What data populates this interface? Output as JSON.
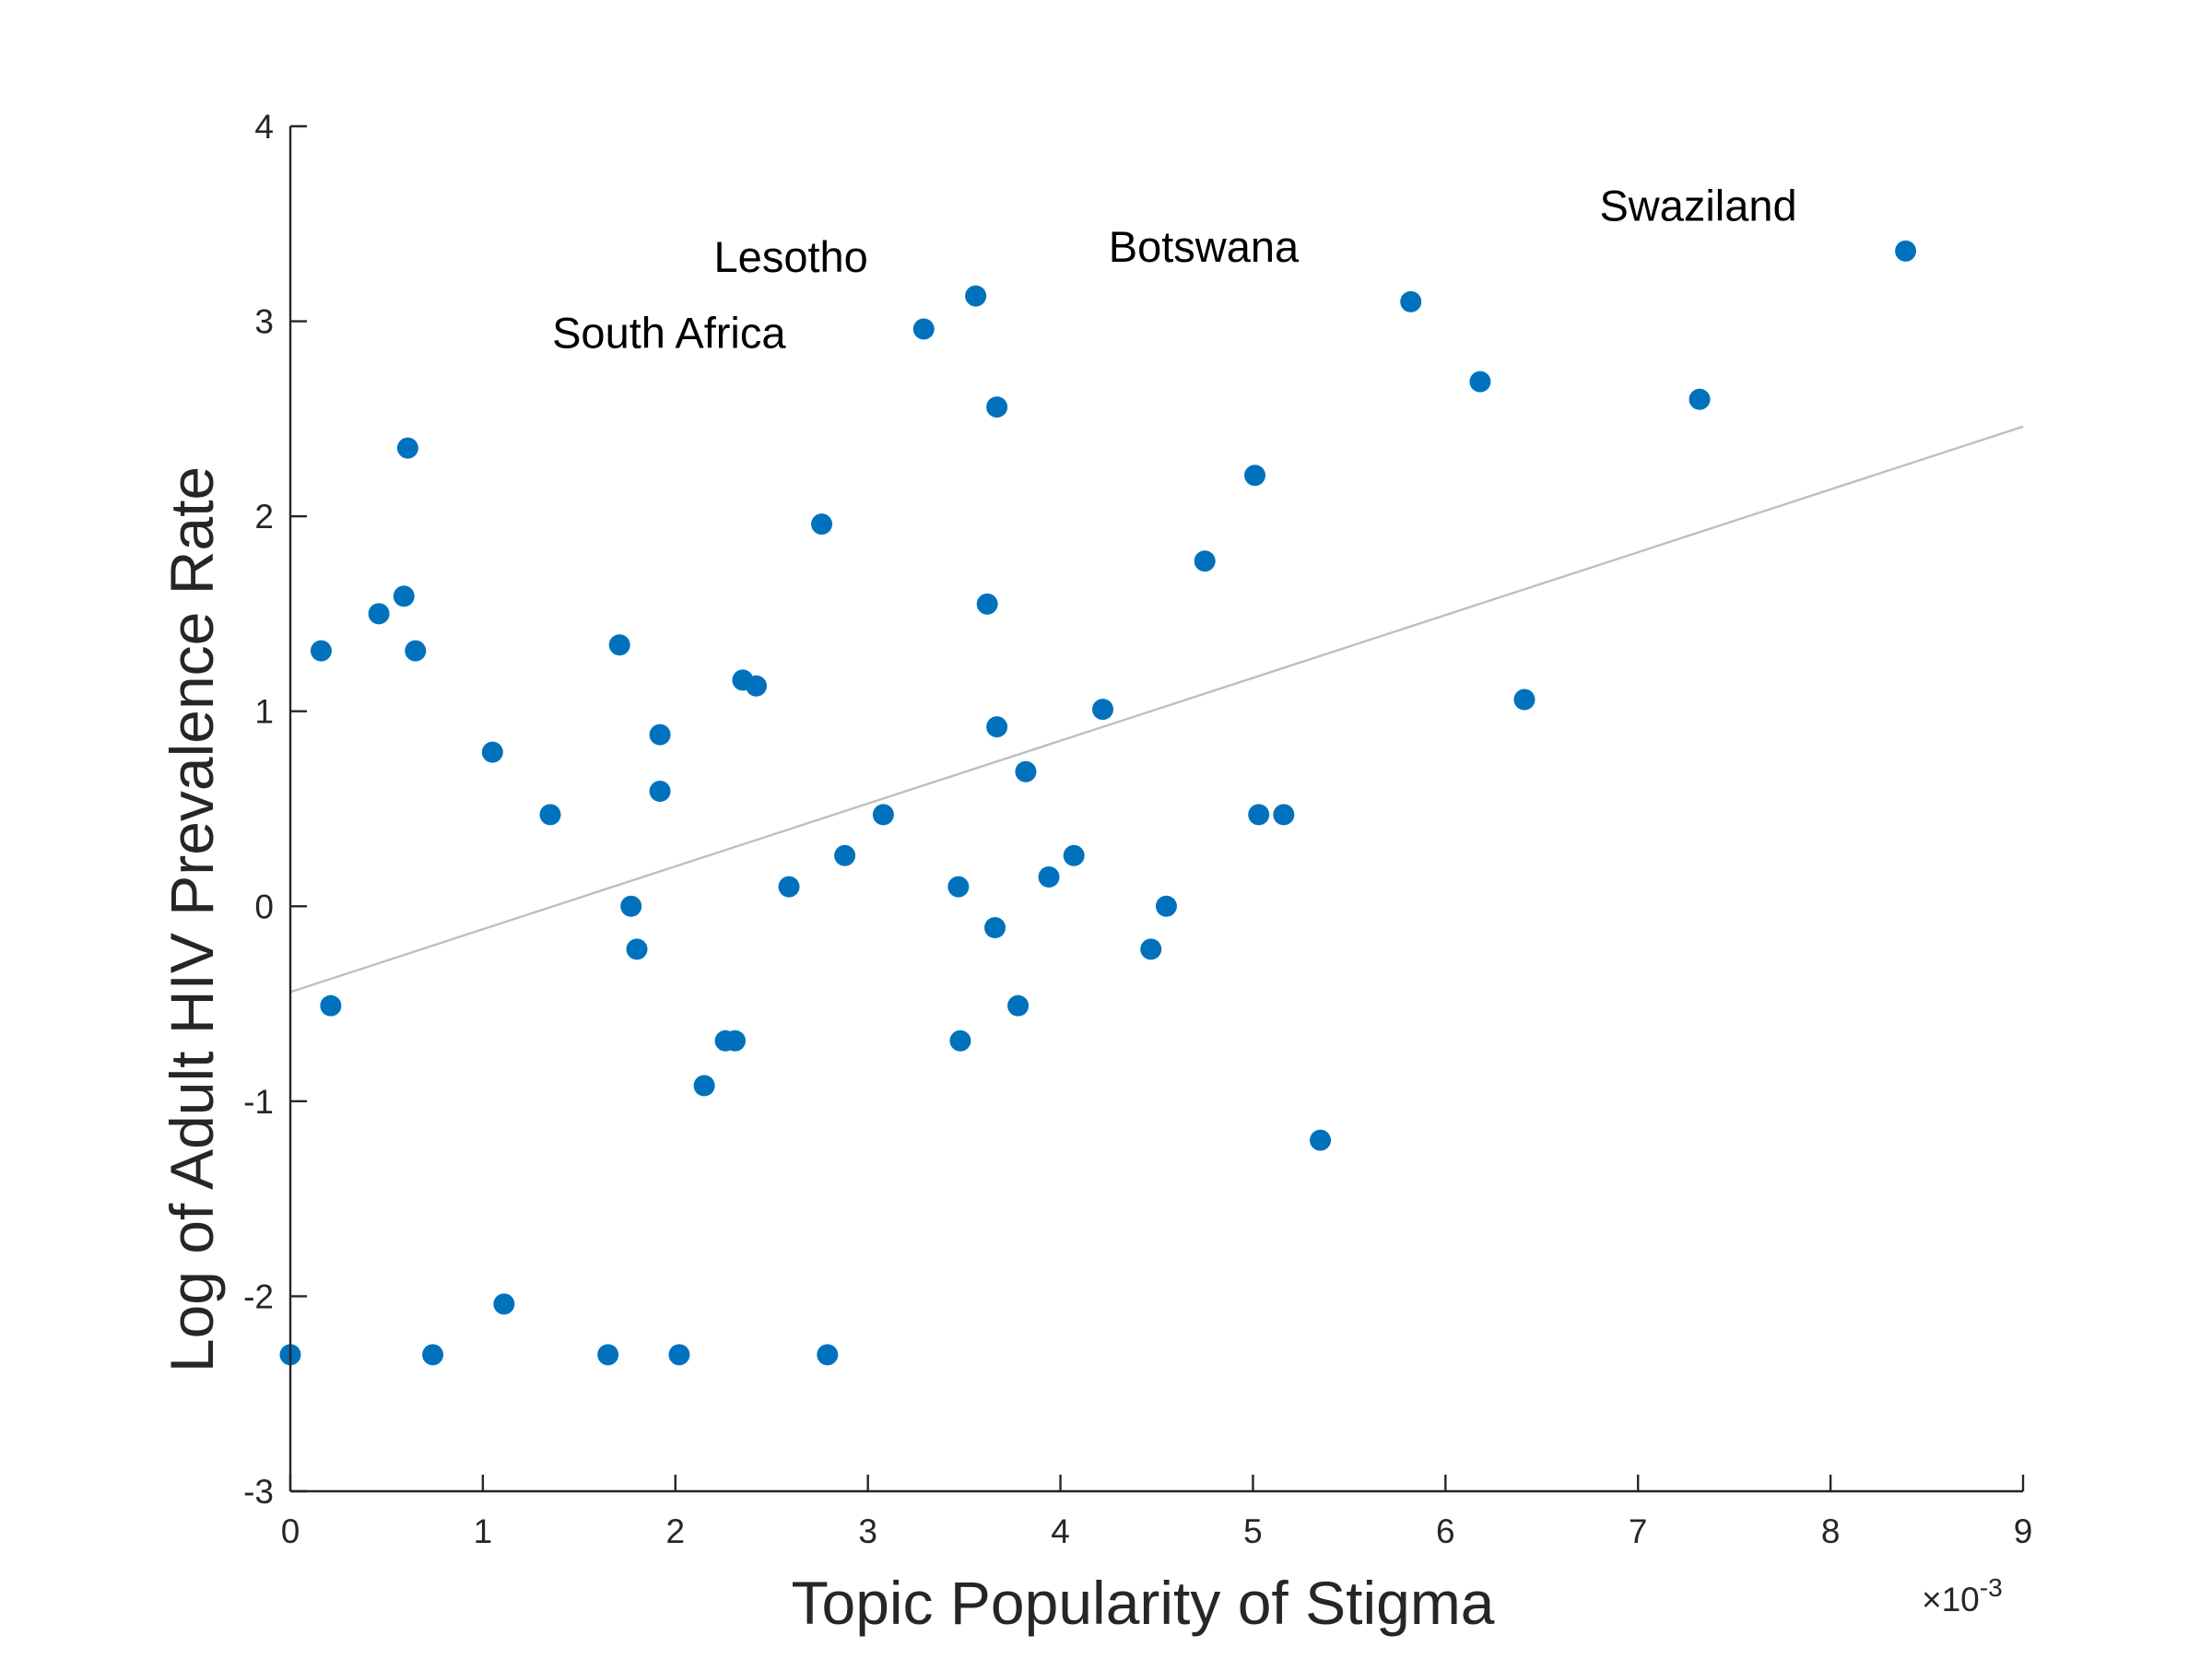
{
  "chart_data": {
    "type": "scatter",
    "title": "",
    "xlabel": "Topic Popularity of Stigma",
    "ylabel": "Log of Adult HIV Prevalence Rate",
    "x_exponent_label": "×10",
    "x_exponent_power": "-3",
    "xlim": [
      0,
      9
    ],
    "ylim": [
      -3,
      4
    ],
    "xticks": [
      "0",
      "1",
      "2",
      "3",
      "4",
      "5",
      "6",
      "7",
      "8",
      "9"
    ],
    "yticks": [
      "-3",
      "-2",
      "-1",
      "0",
      "1",
      "2",
      "3",
      "4"
    ],
    "grid": false,
    "colors": {
      "points": "#0072BD",
      "fit_line": "#BFBFBF",
      "axis": "#262626"
    },
    "fit_line": {
      "x": [
        0,
        9
      ],
      "y": [
        -0.44,
        2.46
      ]
    },
    "points": [
      {
        "x": 0.16,
        "y": 1.31
      },
      {
        "x": 0.21,
        "y": -0.51
      },
      {
        "x": 0.46,
        "y": 1.5
      },
      {
        "x": 0.59,
        "y": 1.59
      },
      {
        "x": 0.61,
        "y": 2.35
      },
      {
        "x": 0.65,
        "y": 1.31
      },
      {
        "x": 1.05,
        "y": 0.79
      },
      {
        "x": 1.35,
        "y": 0.47
      },
      {
        "x": 1.71,
        "y": 1.34
      },
      {
        "x": 1.77,
        "y": 0.0
      },
      {
        "x": 1.8,
        "y": -0.22
      },
      {
        "x": 1.92,
        "y": 0.88
      },
      {
        "x": 1.92,
        "y": 0.59
      },
      {
        "x": 2.15,
        "y": -0.92
      },
      {
        "x": 2.26,
        "y": -0.69
      },
      {
        "x": 2.31,
        "y": -0.69
      },
      {
        "x": 2.35,
        "y": 1.16
      },
      {
        "x": 2.42,
        "y": 1.13
      },
      {
        "x": 2.59,
        "y": 0.1
      },
      {
        "x": 2.76,
        "y": 1.96
      },
      {
        "x": 2.88,
        "y": 0.26
      },
      {
        "x": 3.08,
        "y": 0.47
      },
      {
        "x": 3.29,
        "y": 2.96
      },
      {
        "x": 3.47,
        "y": 0.1
      },
      {
        "x": 3.48,
        "y": -0.69
      },
      {
        "x": 3.56,
        "y": 3.13
      },
      {
        "x": 3.62,
        "y": 1.55
      },
      {
        "x": 3.66,
        "y": -0.11
      },
      {
        "x": 3.67,
        "y": 2.56
      },
      {
        "x": 3.67,
        "y": 0.92
      },
      {
        "x": 3.78,
        "y": -0.51
      },
      {
        "x": 3.82,
        "y": 0.69
      },
      {
        "x": 3.94,
        "y": 0.15
      },
      {
        "x": 4.07,
        "y": 0.26
      },
      {
        "x": 4.22,
        "y": 1.01
      },
      {
        "x": 4.47,
        "y": -0.22
      },
      {
        "x": 4.55,
        "y": 0.0
      },
      {
        "x": 4.75,
        "y": 1.77
      },
      {
        "x": 5.01,
        "y": 2.21
      },
      {
        "x": 5.03,
        "y": 0.47
      },
      {
        "x": 5.16,
        "y": 0.47
      },
      {
        "x": 5.35,
        "y": -1.2
      },
      {
        "x": 5.82,
        "y": 3.1
      },
      {
        "x": 6.18,
        "y": 2.69
      },
      {
        "x": 6.41,
        "y": 1.06
      },
      {
        "x": 7.32,
        "y": 2.6
      },
      {
        "x": 8.39,
        "y": 3.36
      },
      {
        "x": 0.0,
        "y": -2.3
      },
      {
        "x": 0.74,
        "y": -2.3
      },
      {
        "x": 1.11,
        "y": -2.04
      },
      {
        "x": 1.65,
        "y": -2.3
      },
      {
        "x": 2.02,
        "y": -2.3
      },
      {
        "x": 2.79,
        "y": -2.3
      }
    ],
    "annotations": [
      {
        "text": "Lesotho",
        "x": 2.2,
        "y": 3.33
      },
      {
        "text": "South Africa",
        "x": 1.36,
        "y": 2.94
      },
      {
        "text": "Botswana",
        "x": 4.25,
        "y": 3.38
      },
      {
        "text": "Swaziland",
        "x": 6.8,
        "y": 3.59
      }
    ]
  }
}
